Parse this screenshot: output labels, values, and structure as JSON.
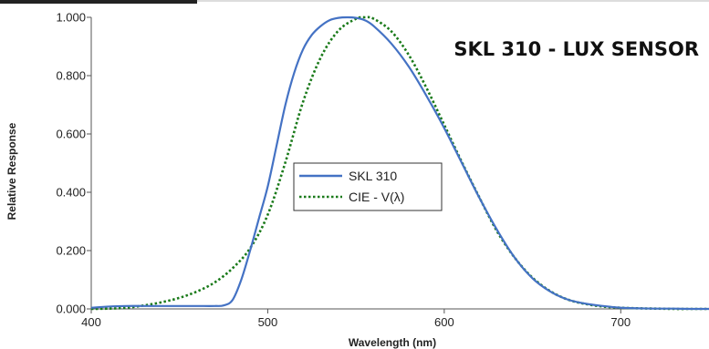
{
  "chart_data": {
    "type": "line",
    "title": "SKL 310 - LUX SENSOR",
    "xlabel": "Wavelength (nm)",
    "ylabel": "Relative Response",
    "xlim": [
      400,
      750
    ],
    "ylim": [
      0,
      1
    ],
    "x_ticks": [
      400,
      500,
      600,
      700
    ],
    "x_tick_labels": [
      "400",
      "500",
      "600",
      "700"
    ],
    "y_ticks": [
      0,
      0.2,
      0.4,
      0.6,
      0.8,
      1.0
    ],
    "y_tick_labels": [
      "0.000",
      "0.200",
      "0.400",
      "0.600",
      "0.800",
      "1.000"
    ],
    "grid": false,
    "legend_position": "center",
    "series": [
      {
        "name": "SKL 310",
        "color": "#4472c4",
        "style": "solid",
        "x": [
          400,
          410,
          420,
          430,
          440,
          450,
          460,
          470,
          475,
          480,
          485,
          490,
          495,
          500,
          505,
          510,
          515,
          520,
          525,
          530,
          535,
          540,
          545,
          550,
          555,
          560,
          570,
          580,
          590,
          600,
          610,
          620,
          630,
          640,
          650,
          660,
          670,
          680,
          690,
          700,
          710,
          720,
          730,
          740,
          750
        ],
        "y": [
          0.004,
          0.008,
          0.01,
          0.01,
          0.01,
          0.01,
          0.01,
          0.01,
          0.012,
          0.03,
          0.1,
          0.2,
          0.31,
          0.42,
          0.56,
          0.7,
          0.81,
          0.89,
          0.94,
          0.97,
          0.99,
          0.998,
          1.0,
          0.998,
          0.99,
          0.97,
          0.91,
          0.83,
          0.73,
          0.62,
          0.5,
          0.38,
          0.27,
          0.175,
          0.105,
          0.06,
          0.032,
          0.018,
          0.01,
          0.004,
          0.002,
          0.001,
          0.001,
          0.0,
          0.0
        ]
      },
      {
        "name": "CIE - V(λ)",
        "color": "#1a7a1a",
        "style": "dotted",
        "x": [
          400,
          410,
          420,
          430,
          440,
          450,
          460,
          470,
          480,
          490,
          500,
          510,
          520,
          530,
          540,
          550,
          555,
          560,
          570,
          580,
          590,
          600,
          610,
          620,
          630,
          640,
          650,
          660,
          670,
          680,
          690,
          700,
          710,
          720,
          730,
          740,
          750
        ],
        "y": [
          0.0,
          0.001,
          0.004,
          0.012,
          0.023,
          0.038,
          0.06,
          0.091,
          0.139,
          0.208,
          0.323,
          0.503,
          0.71,
          0.862,
          0.954,
          0.995,
          1.0,
          0.995,
          0.952,
          0.87,
          0.757,
          0.631,
          0.503,
          0.381,
          0.265,
          0.175,
          0.107,
          0.061,
          0.032,
          0.017,
          0.008,
          0.004,
          0.002,
          0.001,
          0.0,
          0.0,
          0.0
        ]
      }
    ]
  }
}
